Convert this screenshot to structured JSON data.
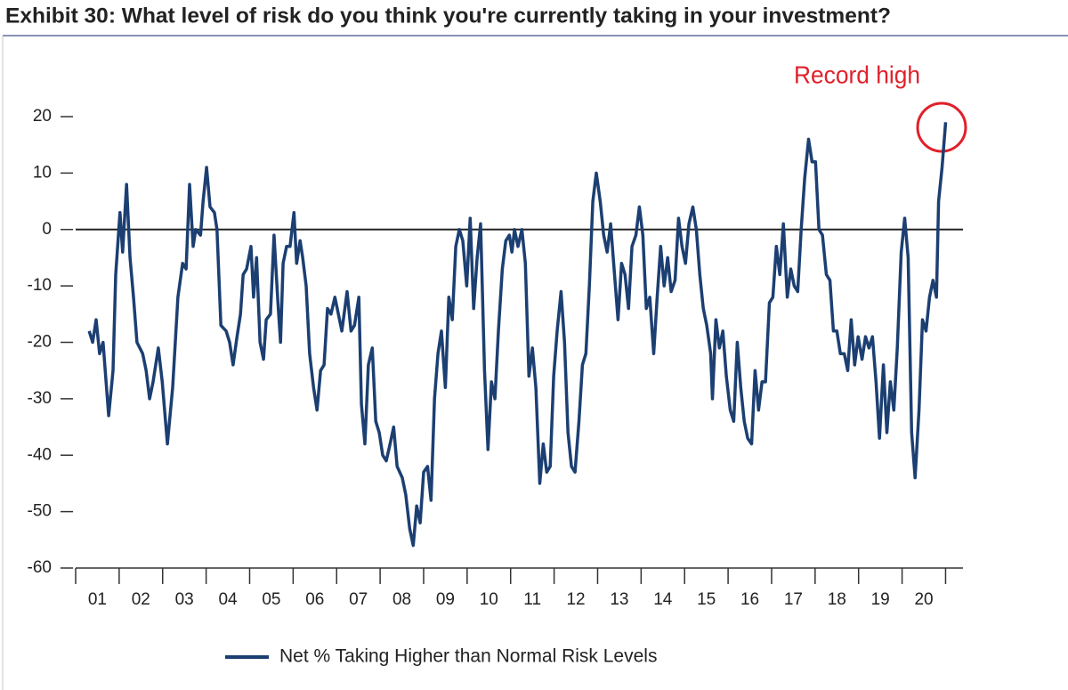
{
  "chart_data": {
    "type": "line",
    "title": "Exhibit 30: What level of risk do you think you're currently taking in your investment?",
    "annotation": "Record high",
    "x": [
      1.31,
      1.39,
      1.47,
      1.55,
      1.63,
      1.76,
      1.86,
      1.92,
      2.02,
      2.08,
      2.17,
      2.25,
      2.33,
      2.41,
      2.54,
      2.62,
      2.7,
      2.78,
      2.9,
      2.99,
      3.11,
      3.23,
      3.35,
      3.46,
      3.54,
      3.62,
      3.7,
      3.76,
      3.87,
      3.93,
      4.01,
      4.09,
      4.19,
      4.25,
      4.34,
      4.46,
      4.54,
      4.62,
      4.71,
      4.79,
      4.85,
      4.93,
      5.03,
      5.09,
      5.16,
      5.24,
      5.32,
      5.38,
      5.48,
      5.56,
      5.65,
      5.71,
      5.77,
      5.85,
      5.93,
      6.02,
      6.08,
      6.16,
      6.22,
      6.3,
      6.38,
      6.47,
      6.55,
      6.63,
      6.71,
      6.79,
      6.87,
      6.96,
      7.04,
      7.12,
      7.24,
      7.33,
      7.41,
      7.51,
      7.57,
      7.65,
      7.73,
      7.82,
      7.9,
      7.98,
      8.06,
      8.14,
      8.23,
      8.31,
      8.39,
      8.51,
      8.59,
      8.68,
      8.76,
      8.84,
      8.92,
      9.0,
      9.09,
      9.17,
      9.25,
      9.33,
      9.41,
      9.5,
      9.58,
      9.66,
      9.74,
      9.82,
      9.9,
      9.99,
      10.07,
      10.15,
      10.23,
      10.31,
      10.4,
      10.48,
      10.56,
      10.64,
      10.72,
      10.81,
      10.89,
      10.97,
      11.03,
      11.09,
      11.17,
      11.26,
      11.34,
      11.42,
      11.5,
      11.58,
      11.67,
      11.75,
      11.83,
      11.91,
      11.99,
      12.07,
      12.16,
      12.24,
      12.32,
      12.4,
      12.48,
      12.57,
      12.65,
      12.73,
      12.81,
      12.89,
      12.97,
      13.06,
      13.14,
      13.22,
      13.3,
      13.38,
      13.47,
      13.55,
      13.63,
      13.71,
      13.79,
      13.88,
      13.96,
      14.04,
      14.12,
      14.2,
      14.29,
      14.37,
      14.45,
      14.53,
      14.61,
      14.69,
      14.78,
      14.86,
      14.94,
      15.02,
      15.1,
      15.19,
      15.27,
      15.35,
      15.43,
      15.51,
      15.6,
      15.64,
      15.72,
      15.8,
      15.88,
      15.96,
      16.05,
      16.13,
      16.21,
      16.29,
      16.37,
      16.45,
      16.54,
      16.62,
      16.7,
      16.78,
      16.86,
      16.95,
      17.03,
      17.11,
      17.19,
      17.27,
      17.36,
      17.44,
      17.52,
      17.6,
      17.68,
      17.76,
      17.85,
      17.93,
      18.01,
      18.09,
      18.17,
      18.26,
      18.34,
      18.42,
      18.5,
      18.58,
      18.67,
      18.75,
      18.83,
      18.91,
      18.99,
      19.08,
      19.16,
      19.24,
      19.32,
      19.4,
      19.48,
      19.57,
      19.65,
      19.73,
      19.81,
      19.89,
      19.98,
      20.06,
      20.14,
      20.22,
      20.3,
      20.39,
      20.47,
      20.55,
      20.63,
      20.71,
      20.79,
      20.84,
      20.92,
      21.0
    ],
    "series": [
      {
        "name": "Net % Taking Higher than Normal Risk Levels",
        "color": "#1c3f72",
        "values": [
          -18,
          -20,
          -16,
          -22,
          -20,
          -33,
          -25,
          -8,
          3,
          -4,
          8,
          -5,
          -12,
          -20,
          -22,
          -25,
          -30,
          -27,
          -21,
          -27,
          -38,
          -28,
          -12,
          -6,
          -7,
          8,
          -3,
          0,
          -1,
          5,
          11,
          4,
          3,
          0,
          -17,
          -18,
          -20,
          -24,
          -19,
          -15,
          -8,
          -7,
          -3,
          -12,
          -5,
          -20,
          -23,
          -16,
          -15,
          -1,
          -13,
          -20,
          -6,
          -3,
          -3,
          3,
          -6,
          -2,
          -5,
          -10,
          -22,
          -28,
          -32,
          -25,
          -24,
          -14,
          -15,
          -12,
          -15,
          -18,
          -11,
          -18,
          -17,
          -12,
          -31,
          -38,
          -24,
          -21,
          -34,
          -36,
          -40,
          -41,
          -38,
          -35,
          -42,
          -44,
          -47,
          -53,
          -56,
          -49,
          -52,
          -43,
          -42,
          -48,
          -30,
          -22,
          -18,
          -28,
          -12,
          -16,
          -3,
          0,
          -2,
          -10,
          2,
          -14,
          -5,
          1,
          -25,
          -39,
          -27,
          -30,
          -18,
          -7,
          -2,
          -1,
          -4,
          0,
          -3,
          0,
          -6,
          -26,
          -21,
          -28,
          -45,
          -38,
          -43,
          -42,
          -26,
          -18,
          -11,
          -20,
          -36,
          -42,
          -43,
          -34,
          -24,
          -22,
          -10,
          5,
          10,
          5,
          -1,
          -4,
          1,
          -7,
          -16,
          -6,
          -8,
          -14,
          -3,
          -1,
          4,
          -1,
          -14,
          -12,
          -22,
          -12,
          -3,
          -10,
          -5,
          -11,
          -9,
          2,
          -3,
          -6,
          1,
          4,
          0,
          -8,
          -14,
          -17,
          -22,
          -30,
          -16,
          -21,
          -18,
          -26,
          -32,
          -34,
          -20,
          -28,
          -34,
          -37,
          -38,
          -25,
          -32,
          -27,
          -27,
          -13,
          -12,
          -3,
          -8,
          1,
          -12,
          -7,
          -10,
          -11,
          0,
          9,
          16,
          12,
          12,
          0,
          -1,
          -8,
          -9,
          -18,
          -18,
          -22,
          -22,
          -25,
          -16,
          -24,
          -19,
          -23,
          -19,
          -21,
          -19,
          -27,
          -37,
          -24,
          -36,
          -27,
          -32,
          -21,
          -4,
          2,
          -5,
          -36,
          -44,
          -32,
          -16,
          -18,
          -12,
          -9,
          -12,
          5,
          11,
          19
        ]
      }
    ],
    "xlim": [
      1,
      21.4
    ],
    "xticks": [
      {
        "value": 1.5,
        "label": "01"
      },
      {
        "value": 2.5,
        "label": "02"
      },
      {
        "value": 3.5,
        "label": "03"
      },
      {
        "value": 4.5,
        "label": "04"
      },
      {
        "value": 5.5,
        "label": "05"
      },
      {
        "value": 6.5,
        "label": "06"
      },
      {
        "value": 7.5,
        "label": "07"
      },
      {
        "value": 8.5,
        "label": "08"
      },
      {
        "value": 9.5,
        "label": "09"
      },
      {
        "value": 10.5,
        "label": "10"
      },
      {
        "value": 11.5,
        "label": "11"
      },
      {
        "value": 12.5,
        "label": "12"
      },
      {
        "value": 13.5,
        "label": "13"
      },
      {
        "value": 14.5,
        "label": "14"
      },
      {
        "value": 15.5,
        "label": "15"
      },
      {
        "value": 16.5,
        "label": "16"
      },
      {
        "value": 17.5,
        "label": "17"
      },
      {
        "value": 18.5,
        "label": "18"
      },
      {
        "value": 19.5,
        "label": "19"
      },
      {
        "value": 20.5,
        "label": "20"
      }
    ],
    "ylim": [
      -60,
      20
    ],
    "yticks": [
      -60,
      -50,
      -40,
      -30,
      -20,
      -10,
      0,
      10,
      20
    ]
  }
}
